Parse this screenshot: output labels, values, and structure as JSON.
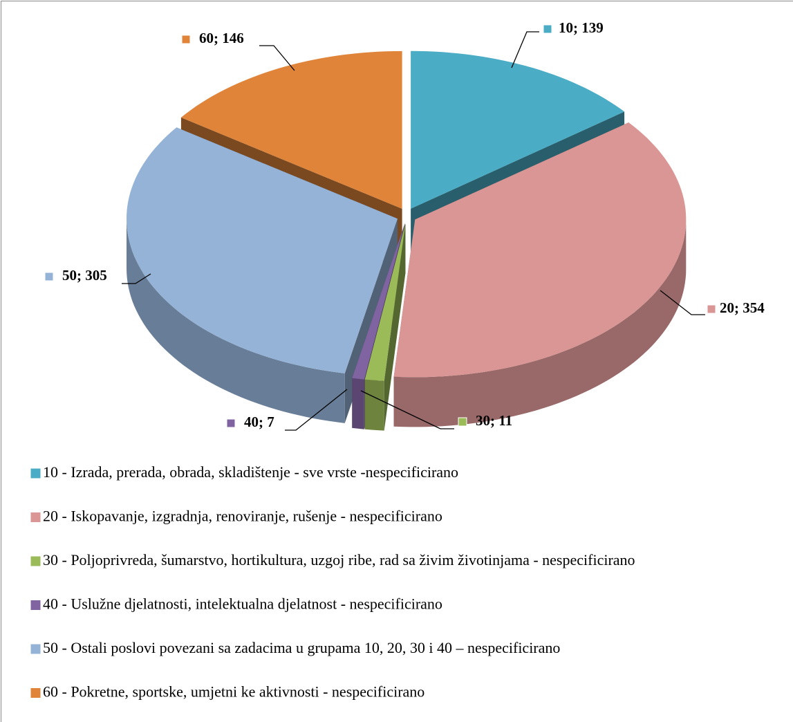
{
  "chart_data": {
    "type": "pie",
    "view": "3d-exploded",
    "categories": [
      "10 - Izrada, prerada, obrada, skladištenje - sve vrste -nespecificirano",
      "20 - Iskopavanje, izgradnja, renoviranje, rušenje - nespecificirano",
      "30 - Poljoprivreda, šumarstvo, hortikultura, uzgoj ribe, rad sa živim životinjama - nespecificirano",
      "40 - Uslužne djelatnosti, intelektualna djelatnost - nespecificirano",
      "50 - Ostali poslovi povezani sa zadacima u grupama 10, 20, 30 i 40 – nespecificirano",
      "60 - Pokretne, sportske, umjetni  ke aktivnosti - nespecificirano"
    ],
    "values": [
      139,
      354,
      11,
      7,
      305,
      146
    ],
    "value_labels": [
      "10; 139",
      "20; 354",
      "30; 11",
      "40; 7",
      "50; 305",
      "60; 146"
    ],
    "colors": [
      "#4bacc6",
      "#d99694",
      "#9bbb59",
      "#8064a2",
      "#95b3d7",
      "#e0843a"
    ],
    "legend": "bottom"
  }
}
